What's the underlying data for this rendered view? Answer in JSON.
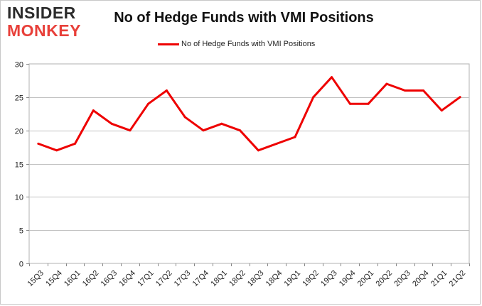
{
  "logo": {
    "line1": "INSIDER",
    "line2": "MONKEY"
  },
  "chart_data": {
    "type": "line",
    "title": "No of Hedge Funds with VMI Positions",
    "xlabel": "",
    "ylabel": "",
    "categories": [
      "15Q3",
      "15Q4",
      "16Q1",
      "16Q2",
      "16Q3",
      "16Q4",
      "17Q1",
      "17Q2",
      "17Q3",
      "17Q4",
      "18Q1",
      "18Q2",
      "18Q3",
      "18Q4",
      "19Q1",
      "19Q2",
      "19Q3",
      "19Q4",
      "20Q1",
      "20Q2",
      "20Q3",
      "20Q4",
      "21Q1",
      "21Q2"
    ],
    "series": [
      {
        "name": "No of Hedge Funds with VMI Positions",
        "color": "#ee0000",
        "values": [
          18,
          17,
          18,
          23,
          21,
          20,
          24,
          26,
          22,
          20,
          21,
          20,
          17,
          18,
          19,
          25,
          28,
          24,
          24,
          27,
          26,
          26,
          23,
          25
        ]
      }
    ],
    "ylim": [
      0,
      30
    ],
    "yticks": [
      0,
      5,
      10,
      15,
      20,
      25,
      30
    ],
    "grid": true,
    "legend": "top-center"
  }
}
